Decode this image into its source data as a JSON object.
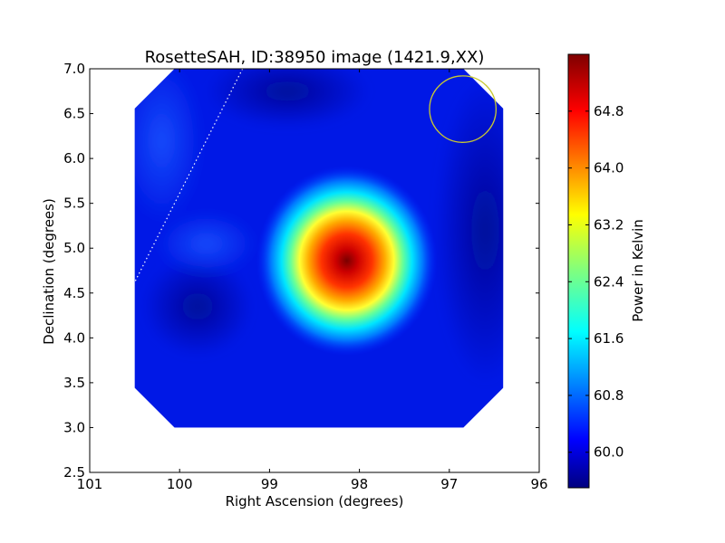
{
  "chart_data": {
    "type": "heatmap",
    "title": "RosetteSAH, ID:38950 image (1421.9,XX)",
    "xlabel": "Right Ascension (degrees)",
    "ylabel": "Declination (degrees)",
    "xlim": [
      101,
      96
    ],
    "ylim": [
      2.5,
      7.0
    ],
    "xticks": [
      "101",
      "100",
      "99",
      "98",
      "97",
      "96"
    ],
    "yticks": [
      "2.5",
      "3.0",
      "3.5",
      "4.0",
      "4.5",
      "5.0",
      "5.5",
      "6.0",
      "6.5",
      "7.0"
    ],
    "colorbar": {
      "label": "Power in Kelvin",
      "range": [
        59.5,
        65.6
      ],
      "ticks": [
        "60.0",
        "60.8",
        "61.6",
        "62.4",
        "63.2",
        "64.0",
        "64.8"
      ],
      "colormap": "jet"
    },
    "image_extent": {
      "ra": [
        100.5,
        96.4
      ],
      "dec": [
        3.0,
        7.0
      ]
    },
    "peak": {
      "ra": 98.1,
      "dec": 4.8,
      "value": 65.5
    },
    "beam_circle": {
      "ra": 96.85,
      "dec": 6.55,
      "radius_deg": 0.37,
      "color": "#c8c832"
    },
    "dotted_line": [
      {
        "ra": 99.3,
        "dec": 7.0
      },
      {
        "ra": 100.5,
        "dec": 4.62
      }
    ]
  }
}
